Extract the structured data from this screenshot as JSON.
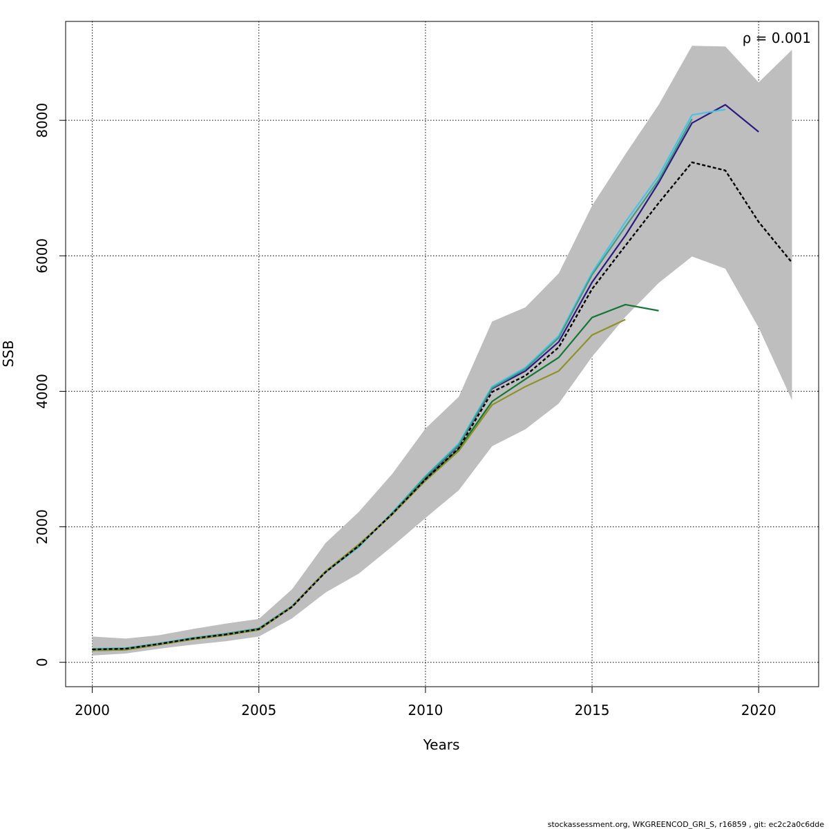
{
  "chart_data": {
    "type": "line",
    "title": "",
    "xlabel": "Years",
    "ylabel": "SSB",
    "xlim": [
      1999.2,
      2021.8
    ],
    "ylim": [
      -360,
      9460
    ],
    "xticks": [
      2000,
      2005,
      2010,
      2015,
      2020
    ],
    "yticks": [
      0,
      2000,
      4000,
      6000,
      8000
    ],
    "grid": true,
    "annotation": "ρ = 0.001",
    "footer": "stockassessment.org, WKGREENCOD_GRI_S, r16859 , git: ec2c2a0c6dde",
    "confidence_band": {
      "x": [
        2000,
        2001,
        2002,
        2003,
        2004,
        2005,
        2006,
        2007,
        2008,
        2009,
        2010,
        2011,
        2012,
        2013,
        2014,
        2015,
        2016,
        2017,
        2018,
        2019,
        2020,
        2021
      ],
      "lower": [
        100,
        130,
        200,
        260,
        310,
        380,
        650,
        1030,
        1310,
        1710,
        2130,
        2540,
        3190,
        3440,
        3820,
        4510,
        5100,
        5600,
        5990,
        5810,
        4940,
        3870
      ],
      "upper": [
        380,
        350,
        400,
        490,
        570,
        640,
        1080,
        1760,
        2220,
        2780,
        3450,
        3920,
        5030,
        5240,
        5740,
        6740,
        7500,
        8230,
        9100,
        9090,
        8560,
        9040
      ],
      "color": "#bebebe"
    },
    "series": [
      {
        "name": "",
        "style": "dashed",
        "color": "#000000",
        "x": [
          2000,
          2001,
          2002,
          2003,
          2004,
          2005,
          2006,
          2007,
          2008,
          2009,
          2010,
          2011,
          2012,
          2013,
          2014,
          2015,
          2016,
          2017,
          2018,
          2019,
          2020,
          2021
        ],
        "values": [
          190,
          200,
          270,
          350,
          410,
          490,
          820,
          1330,
          1720,
          2190,
          2700,
          3160,
          3990,
          4230,
          4650,
          5510,
          6150,
          6780,
          7380,
          7260,
          6500,
          5900
        ]
      },
      {
        "name": "",
        "style": "solid",
        "color": "#2b1b80",
        "x": [
          2000,
          2001,
          2002,
          2003,
          2004,
          2005,
          2006,
          2007,
          2008,
          2009,
          2010,
          2011,
          2012,
          2013,
          2014,
          2015,
          2016,
          2017,
          2018,
          2019,
          2020
        ],
        "values": [
          195,
          205,
          275,
          355,
          420,
          500,
          830,
          1340,
          1720,
          2200,
          2730,
          3200,
          4040,
          4300,
          4730,
          5610,
          6300,
          7080,
          7960,
          8230,
          7830
        ]
      },
      {
        "name": "",
        "style": "solid",
        "color": "#4ec1e0",
        "x": [
          2000,
          2001,
          2002,
          2003,
          2004,
          2005,
          2006,
          2007,
          2008,
          2009,
          2010,
          2011,
          2012,
          2013,
          2014,
          2015,
          2016,
          2017,
          2018,
          2019
        ],
        "values": [
          200,
          210,
          280,
          360,
          420,
          500,
          830,
          1330,
          1700,
          2210,
          2750,
          3230,
          4070,
          4350,
          4820,
          5750,
          6500,
          7180,
          8080,
          8160
        ]
      },
      {
        "name": "",
        "style": "solid",
        "color": "#3d9b88",
        "x": [
          2000,
          2001,
          2002,
          2003,
          2004,
          2005,
          2006,
          2007,
          2008,
          2009,
          2010,
          2011,
          2012,
          2013,
          2014,
          2015,
          2016,
          2017,
          2018
        ],
        "values": [
          195,
          205,
          275,
          355,
          420,
          500,
          830,
          1330,
          1710,
          2200,
          2740,
          3210,
          4050,
          4330,
          4790,
          5720,
          6430,
          7120,
          8020
        ]
      },
      {
        "name": "",
        "style": "solid",
        "color": "#157534",
        "x": [
          2000,
          2001,
          2002,
          2003,
          2004,
          2005,
          2006,
          2007,
          2008,
          2009,
          2010,
          2011,
          2012,
          2013,
          2014,
          2015,
          2016,
          2017
        ],
        "values": [
          175,
          185,
          260,
          340,
          400,
          480,
          820,
          1340,
          1740,
          2180,
          2700,
          3150,
          3850,
          4180,
          4500,
          5090,
          5280,
          5190
        ]
      },
      {
        "name": "",
        "style": "solid",
        "color": "#8e9128",
        "x": [
          2000,
          2001,
          2002,
          2003,
          2004,
          2005,
          2006,
          2007,
          2008,
          2009,
          2010,
          2011,
          2012,
          2013,
          2014,
          2015,
          2016
        ],
        "values": [
          175,
          185,
          260,
          340,
          400,
          480,
          820,
          1340,
          1740,
          2180,
          2680,
          3120,
          3800,
          4070,
          4300,
          4830,
          5060
        ]
      }
    ]
  }
}
